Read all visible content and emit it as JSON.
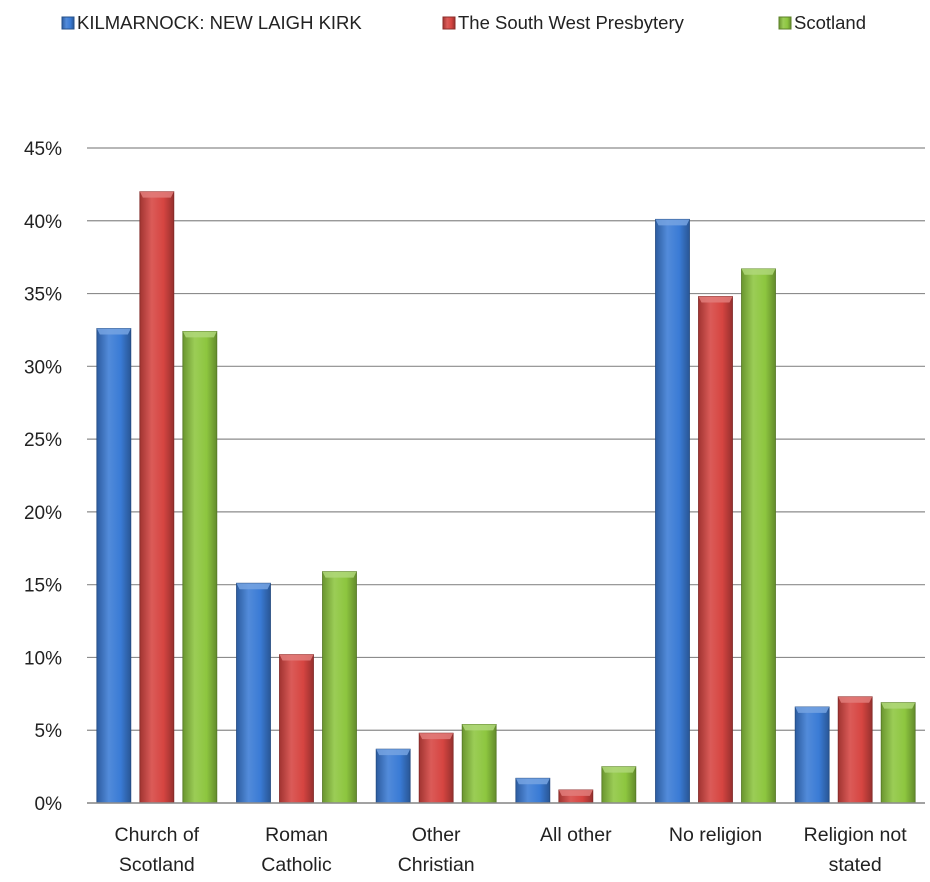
{
  "chart_data": {
    "type": "bar",
    "categories": [
      [
        "Church of",
        "Scotland"
      ],
      [
        "Roman",
        "Catholic"
      ],
      [
        "Other",
        "Christian"
      ],
      [
        "All other"
      ],
      [
        "No religion"
      ],
      [
        "Religion not",
        "stated"
      ]
    ],
    "series": [
      {
        "name": "KILMARNOCK: NEW LAIGH KIRK",
        "color": "#3a7bd5",
        "values": [
          32.6,
          15.1,
          3.7,
          1.7,
          40.1,
          6.6
        ]
      },
      {
        "name": "The South West Presbytery",
        "color": "#d64541",
        "values": [
          42.0,
          10.2,
          4.8,
          0.9,
          34.8,
          7.3
        ]
      },
      {
        "name": "Scotland",
        "color": "#8dc63f",
        "values": [
          32.4,
          15.9,
          5.4,
          2.5,
          36.7,
          6.9
        ]
      }
    ],
    "ylim": [
      0,
      45
    ],
    "yticks": [
      0,
      5,
      10,
      15,
      20,
      25,
      30,
      35,
      40,
      45
    ],
    "ytick_labels": [
      "0%",
      "5%",
      "10%",
      "15%",
      "20%",
      "25%",
      "30%",
      "35%",
      "40%",
      "45%"
    ],
    "grid": true,
    "legend_position": "top"
  }
}
